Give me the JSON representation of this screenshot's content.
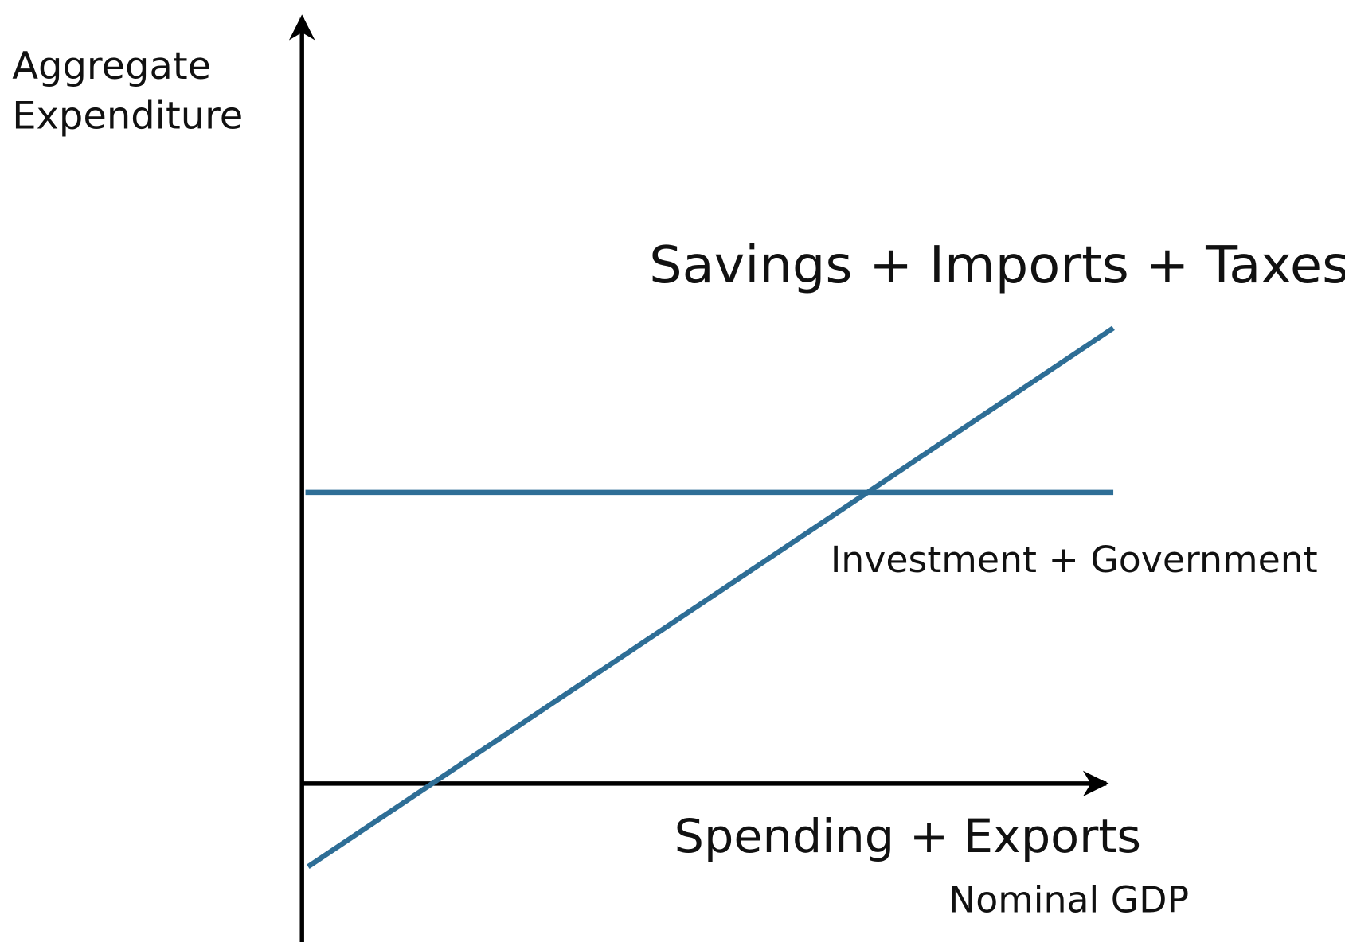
{
  "y_axis_label": [
    "Aggregate",
    "Expenditure"
  ],
  "x_axis_label": "Nominal GDP",
  "curves": [
    {
      "label": "Savings + Imports + Taxes"
    },
    {
      "label": "Investment + Government"
    },
    {
      "label": "Spending + Exports"
    }
  ]
}
